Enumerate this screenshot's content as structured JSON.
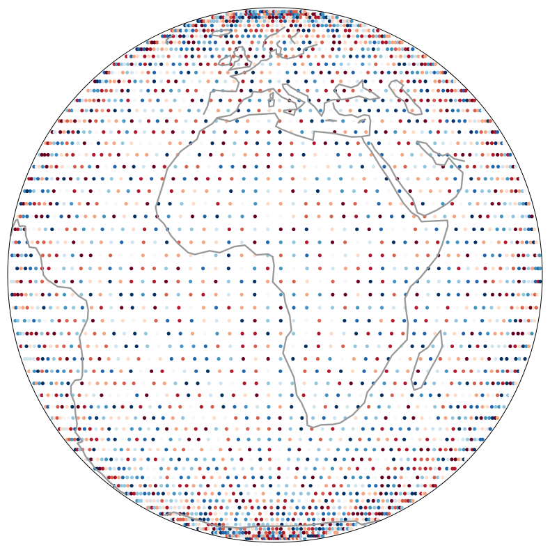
{
  "map": {
    "projection": "orthographic",
    "center_lon": 10,
    "center_lat": 0,
    "background": "#ffffff",
    "outline_color": "#000000",
    "coastline_color": "#999999",
    "point_palette": [
      "#67001f",
      "#b2182b",
      "#d6604d",
      "#f4a582",
      "#fddbc7",
      "#f7f7f7",
      "#d1e5f0",
      "#92c5de",
      "#4393c3",
      "#2166ac",
      "#053061"
    ],
    "colormap": "RdBu",
    "grid": {
      "type": "regular lat-lon",
      "lon_step_deg": 2.8125,
      "lat_step_deg": 2.8125
    },
    "coastlines": {
      "africa": [
        [
          -17.5,
          14.7
        ],
        [
          -16.5,
          19.5
        ],
        [
          -16.0,
          23.5
        ],
        [
          -13.5,
          27.5
        ],
        [
          -9.8,
          30.5
        ],
        [
          -9.5,
          32.5
        ],
        [
          -6.5,
          34.5
        ],
        [
          -5.6,
          35.9
        ],
        [
          -2.0,
          35.1
        ],
        [
          3.0,
          36.8
        ],
        [
          10.0,
          37.2
        ],
        [
          11.0,
          35.5
        ],
        [
          10.2,
          33.8
        ],
        [
          11.5,
          33.1
        ],
        [
          15.5,
          31.5
        ],
        [
          19.5,
          30.3
        ],
        [
          20.0,
          32.5
        ],
        [
          25.0,
          32.0
        ],
        [
          29.5,
          31.1
        ],
        [
          32.3,
          31.2
        ],
        [
          32.6,
          29.8
        ],
        [
          34.0,
          27.5
        ],
        [
          35.5,
          24.0
        ],
        [
          37.2,
          21.0
        ],
        [
          38.6,
          18.0
        ],
        [
          39.9,
          15.6
        ],
        [
          41.7,
          13.5
        ],
        [
          43.3,
          12.6
        ],
        [
          44.0,
          11.5
        ],
        [
          51.2,
          11.8
        ],
        [
          51.1,
          10.5
        ],
        [
          49.0,
          6.5
        ],
        [
          47.5,
          4.0
        ],
        [
          43.0,
          -0.5
        ],
        [
          40.5,
          -2.5
        ],
        [
          39.2,
          -5.0
        ],
        [
          39.5,
          -7.0
        ],
        [
          40.4,
          -10.5
        ],
        [
          40.6,
          -14.0
        ],
        [
          37.3,
          -17.5
        ],
        [
          35.3,
          -22.0
        ],
        [
          32.6,
          -26.0
        ],
        [
          32.4,
          -28.5
        ],
        [
          30.0,
          -31.5
        ],
        [
          27.0,
          -33.6
        ],
        [
          25.0,
          -34.0
        ],
        [
          22.0,
          -34.1
        ],
        [
          20.0,
          -34.8
        ],
        [
          18.4,
          -34.2
        ],
        [
          18.0,
          -31.5
        ],
        [
          16.5,
          -28.6
        ],
        [
          15.2,
          -26.7
        ],
        [
          14.4,
          -22.5
        ],
        [
          11.8,
          -17.0
        ],
        [
          12.5,
          -13.5
        ],
        [
          13.6,
          -12.0
        ],
        [
          13.2,
          -8.8
        ],
        [
          12.2,
          -5.9
        ],
        [
          11.9,
          -4.0
        ],
        [
          9.5,
          -1.5
        ],
        [
          9.8,
          2.0
        ],
        [
          9.5,
          3.9
        ],
        [
          8.5,
          4.5
        ],
        [
          6.0,
          4.3
        ],
        [
          3.5,
          6.4
        ],
        [
          1.2,
          6.1
        ],
        [
          -2.0,
          4.8
        ],
        [
          -4.2,
          5.2
        ],
        [
          -7.5,
          4.4
        ],
        [
          -9.0,
          4.8
        ],
        [
          -11.5,
          6.8
        ],
        [
          -13.2,
          8.5
        ],
        [
          -15.0,
          11.0
        ],
        [
          -16.7,
          12.4
        ],
        [
          -17.5,
          14.7
        ]
      ],
      "madagascar": [
        [
          49.3,
          -12.0
        ],
        [
          50.5,
          -15.5
        ],
        [
          49.8,
          -17.5
        ],
        [
          48.5,
          -20.5
        ],
        [
          47.1,
          -24.9
        ],
        [
          45.2,
          -25.5
        ],
        [
          43.6,
          -23.0
        ],
        [
          43.8,
          -20.5
        ],
        [
          44.4,
          -17.0
        ],
        [
          46.5,
          -15.7
        ],
        [
          48.0,
          -13.5
        ],
        [
          49.3,
          -12.0
        ]
      ],
      "south_america": [
        [
          -50.0,
          0.0
        ],
        [
          -48.5,
          -1.0
        ],
        [
          -44.5,
          -2.5
        ],
        [
          -40.0,
          -2.8
        ],
        [
          -37.5,
          -4.5
        ],
        [
          -35.2,
          -5.5
        ],
        [
          -34.8,
          -7.5
        ],
        [
          -35.3,
          -9.5
        ],
        [
          -37.0,
          -11.5
        ],
        [
          -38.8,
          -13.5
        ],
        [
          -39.1,
          -17.5
        ],
        [
          -40.0,
          -20.0
        ],
        [
          -41.0,
          -22.0
        ],
        [
          -42.0,
          -23.0
        ],
        [
          -44.5,
          -23.2
        ],
        [
          -47.0,
          -24.5
        ],
        [
          -48.5,
          -26.5
        ],
        [
          -48.6,
          -28.5
        ],
        [
          -51.0,
          -31.5
        ],
        [
          -53.0,
          -33.8
        ],
        [
          -55.0,
          -35.0
        ],
        [
          -57.5,
          -36.0
        ],
        [
          -57.0,
          -38.5
        ],
        [
          -62.0,
          -39.0
        ],
        [
          -62.2,
          -41.0
        ],
        [
          -64.5,
          -42.5
        ],
        [
          -65.5,
          -45.0
        ],
        [
          -67.5,
          -46.5
        ],
        [
          -65.8,
          -48.0
        ],
        [
          -68.0,
          -50.5
        ],
        [
          -68.5,
          -52.5
        ],
        [
          -70.0,
          -54.0
        ],
        [
          -67.5,
          -55.0
        ]
      ],
      "north_south_america_north": [
        [
          -50.0,
          0.0
        ],
        [
          -51.5,
          4.0
        ],
        [
          -54.0,
          5.8
        ],
        [
          -57.5,
          6.0
        ],
        [
          -60.5,
          8.5
        ],
        [
          -61.8,
          10.5
        ],
        [
          -64.0,
          10.6
        ],
        [
          -66.5,
          10.5
        ],
        [
          -70.0,
          12.0
        ],
        [
          -72.0,
          11.8
        ],
        [
          -75.5,
          10.5
        ],
        [
          -77.0,
          8.5
        ]
      ],
      "europe": [
        [
          -9.5,
          37.0
        ],
        [
          -9.0,
          39.0
        ],
        [
          -9.0,
          41.0
        ],
        [
          -9.3,
          43.0
        ],
        [
          -8.0,
          43.7
        ],
        [
          -4.0,
          43.4
        ],
        [
          -1.5,
          43.4
        ],
        [
          -1.2,
          46.0
        ],
        [
          -2.5,
          47.3
        ],
        [
          -4.5,
          48.0
        ],
        [
          -1.5,
          48.7
        ],
        [
          1.5,
          50.0
        ],
        [
          3.0,
          51.2
        ],
        [
          4.5,
          52.5
        ],
        [
          5.0,
          53.3
        ],
        [
          7.0,
          53.5
        ],
        [
          8.5,
          54.5
        ],
        [
          8.0,
          56.5
        ],
        [
          10.5,
          57.6
        ],
        [
          10.5,
          56.0
        ],
        [
          12.5,
          54.5
        ],
        [
          14.5,
          54.0
        ],
        [
          18.0,
          54.8
        ],
        [
          21.0,
          56.0
        ],
        [
          21.5,
          57.5
        ],
        [
          24.0,
          58.5
        ],
        [
          28.0,
          59.5
        ]
      ],
      "iberia_med": [
        [
          -5.6,
          36.0
        ],
        [
          -2.0,
          36.7
        ],
        [
          -0.5,
          38.0
        ],
        [
          0.0,
          39.5
        ],
        [
          1.0,
          41.0
        ],
        [
          3.2,
          42.0
        ],
        [
          3.5,
          43.3
        ],
        [
          6.0,
          43.1
        ],
        [
          8.0,
          43.9
        ],
        [
          9.5,
          44.2
        ],
        [
          10.5,
          43.0
        ],
        [
          12.0,
          41.7
        ],
        [
          14.0,
          40.8
        ],
        [
          15.7,
          40.0
        ],
        [
          16.0,
          38.5
        ],
        [
          15.6,
          38.0
        ],
        [
          17.0,
          39.0
        ],
        [
          18.4,
          40.2
        ],
        [
          16.5,
          41.2
        ],
        [
          14.0,
          42.5
        ],
        [
          12.5,
          44.5
        ],
        [
          12.3,
          45.5
        ],
        [
          13.7,
          45.6
        ],
        [
          15.0,
          44.5
        ],
        [
          17.5,
          43.0
        ],
        [
          19.5,
          42.0
        ],
        [
          19.4,
          40.5
        ],
        [
          21.0,
          39.0
        ],
        [
          22.5,
          36.5
        ],
        [
          23.5,
          38.0
        ],
        [
          24.0,
          40.0
        ],
        [
          26.0,
          40.8
        ],
        [
          27.0,
          41.0
        ],
        [
          28.5,
          41.0
        ],
        [
          29.0,
          41.2
        ],
        [
          28.0,
          43.5
        ],
        [
          28.5,
          44.5
        ],
        [
          30.0,
          45.5
        ],
        [
          33.5,
          44.5
        ],
        [
          36.0,
          45.2
        ],
        [
          38.5,
          46.8
        ],
        [
          37.5,
          44.5
        ],
        [
          40.0,
          43.0
        ],
        [
          41.5,
          41.5
        ],
        [
          38.0,
          41.0
        ],
        [
          35.0,
          42.0
        ],
        [
          31.0,
          41.2
        ],
        [
          29.0,
          41.0
        ]
      ],
      "anatolia_levant": [
        [
          26.5,
          40.0
        ],
        [
          26.5,
          38.5
        ],
        [
          27.5,
          37.0
        ],
        [
          29.0,
          36.6
        ],
        [
          31.0,
          36.8
        ],
        [
          32.5,
          36.1
        ],
        [
          34.5,
          36.8
        ],
        [
          36.0,
          36.6
        ],
        [
          35.9,
          35.2
        ],
        [
          35.0,
          33.0
        ],
        [
          34.5,
          31.5
        ],
        [
          32.3,
          31.2
        ]
      ],
      "red_sea_east": [
        [
          34.5,
          29.5
        ],
        [
          35.0,
          28.0
        ],
        [
          36.5,
          26.0
        ],
        [
          38.0,
          24.0
        ],
        [
          39.0,
          21.5
        ],
        [
          40.5,
          19.0
        ],
        [
          42.5,
          16.5
        ],
        [
          43.2,
          13.5
        ],
        [
          45.0,
          12.8
        ],
        [
          48.5,
          14.0
        ],
        [
          52.0,
          15.5
        ],
        [
          55.0,
          17.0
        ],
        [
          57.5,
          19.0
        ],
        [
          59.5,
          22.5
        ],
        [
          58.0,
          23.8
        ],
        [
          56.3,
          26.0
        ],
        [
          54.0,
          24.2
        ],
        [
          51.5,
          24.5
        ],
        [
          51.0,
          26.0
        ],
        [
          50.0,
          26.8
        ],
        [
          48.5,
          28.5
        ],
        [
          47.8,
          30.0
        ]
      ],
      "great_britain": [
        [
          -5.5,
          50.0
        ],
        [
          -3.0,
          50.6
        ],
        [
          1.3,
          51.2
        ],
        [
          1.7,
          52.7
        ],
        [
          0.2,
          53.5
        ],
        [
          -1.5,
          55.5
        ],
        [
          -2.0,
          57.0
        ],
        [
          -3.5,
          58.6
        ],
        [
          -5.0,
          58.5
        ],
        [
          -6.2,
          56.5
        ],
        [
          -5.0,
          55.0
        ],
        [
          -3.0,
          54.5
        ],
        [
          -3.2,
          53.3
        ],
        [
          -4.5,
          52.8
        ],
        [
          -4.3,
          51.7
        ],
        [
          -5.5,
          50.0
        ]
      ],
      "ireland": [
        [
          -6.0,
          52.0
        ],
        [
          -6.1,
          54.0
        ],
        [
          -7.0,
          55.2
        ],
        [
          -8.5,
          54.5
        ],
        [
          -10.0,
          53.5
        ],
        [
          -10.2,
          52.0
        ],
        [
          -8.5,
          51.6
        ],
        [
          -6.0,
          52.0
        ]
      ],
      "scandinavia": [
        [
          5.0,
          58.5
        ],
        [
          5.5,
          61.5
        ],
        [
          7.5,
          63.5
        ],
        [
          10.5,
          64.5
        ],
        [
          13.0,
          66.5
        ],
        [
          15.5,
          68.0
        ]
      ],
      "sweden": [
        [
          12.0,
          56.0
        ],
        [
          12.5,
          58.0
        ],
        [
          11.2,
          59.0
        ],
        [
          10.8,
          59.9
        ],
        [
          12.0,
          61.0
        ]
      ],
      "baltic_east": [
        [
          18.5,
          60.0
        ],
        [
          17.5,
          61.5
        ],
        [
          17.3,
          62.5
        ],
        [
          19.5,
          63.5
        ],
        [
          21.5,
          65.0
        ],
        [
          22.5,
          65.8
        ]
      ],
      "caspian": [
        [
          47.0,
          45.0
        ],
        [
          49.0,
          46.3
        ],
        [
          51.5,
          46.8
        ],
        [
          53.0,
          45.2
        ],
        [
          51.3,
          44.3
        ],
        [
          52.5,
          42.0
        ],
        [
          53.0,
          40.0
        ],
        [
          54.0,
          38.5
        ],
        [
          53.5,
          37.0
        ],
        [
          51.0,
          36.8
        ],
        [
          49.0,
          37.5
        ],
        [
          49.5,
          40.5
        ],
        [
          47.5,
          42.0
        ],
        [
          47.0,
          45.0
        ]
      ],
      "persian_gulf_north": [
        [
          48.0,
          30.0
        ],
        [
          50.5,
          29.5
        ],
        [
          52.0,
          27.5
        ],
        [
          54.5,
          26.5
        ],
        [
          56.5,
          27.0
        ],
        [
          58.0,
          25.8
        ],
        [
          61.5,
          25.2
        ]
      ],
      "iceland": [
        [
          -22.5,
          63.8
        ],
        [
          -18.0,
          63.4
        ],
        [
          -14.0,
          64.5
        ],
        [
          -13.5,
          65.5
        ],
        [
          -16.0,
          66.5
        ],
        [
          -20.0,
          66.2
        ],
        [
          -24.0,
          65.5
        ],
        [
          -22.5,
          63.8
        ]
      ],
      "greenland_tip": [
        [
          -43.0,
          59.8
        ],
        [
          -45.5,
          60.5
        ],
        [
          -48.5,
          61.5
        ],
        [
          -50.5,
          64.0
        ]
      ],
      "sicily": [
        [
          12.4,
          38.0
        ],
        [
          15.6,
          38.3
        ],
        [
          15.1,
          36.7
        ],
        [
          12.4,
          37.6
        ],
        [
          12.4,
          38.0
        ]
      ],
      "sardinia": [
        [
          8.4,
          39.0
        ],
        [
          9.6,
          39.2
        ],
        [
          9.8,
          40.9
        ],
        [
          8.2,
          41.0
        ],
        [
          8.4,
          39.0
        ]
      ],
      "corsica": [
        [
          8.7,
          41.5
        ],
        [
          9.4,
          41.4
        ],
        [
          9.5,
          43.0
        ],
        [
          8.6,
          42.5
        ],
        [
          8.7,
          41.5
        ]
      ],
      "crete": [
        [
          23.5,
          35.3
        ],
        [
          26.3,
          35.2
        ],
        [
          24.5,
          35.5
        ],
        [
          23.5,
          35.3
        ]
      ],
      "cyprus": [
        [
          32.3,
          34.7
        ],
        [
          34.6,
          35.6
        ],
        [
          33.0,
          35.3
        ],
        [
          32.3,
          34.7
        ]
      ],
      "denmark_islands": [
        [
          10.5,
          55.8
        ],
        [
          12.6,
          55.6
        ],
        [
          12.0,
          54.9
        ],
        [
          10.5,
          55.8
        ]
      ],
      "antarctica_coast": [
        [
          -60.0,
          -64.0
        ],
        [
          -45.0,
          -62.5
        ],
        [
          -30.0,
          -70.0
        ],
        [
          -15.0,
          -71.0
        ],
        [
          0.0,
          -70.0
        ],
        [
          15.0,
          -70.0
        ],
        [
          30.0,
          -69.5
        ],
        [
          45.0,
          -67.5
        ],
        [
          60.0,
          -67.0
        ],
        [
          75.0,
          -69.0
        ],
        [
          90.0,
          -66.5
        ]
      ]
    }
  }
}
